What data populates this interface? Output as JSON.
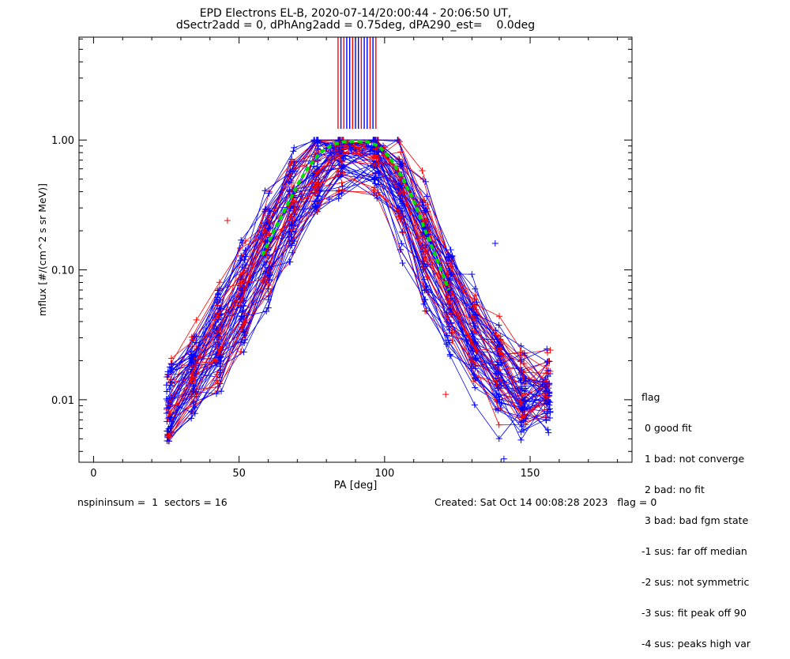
{
  "chart_data": {
    "type": "scatter",
    "title": "EPD Electrons EL-B, 2020-07-14/20:00:44 - 20:06:50 UT,",
    "subtitle": "dSectr2add = 0, dPhAng2add = 0.75deg, dPA290_est=    0.0deg",
    "xlabel": "PA [deg]",
    "ylabel": "mflux [#/(cm^2 s sr MeV)]",
    "xlim": [
      -5,
      185
    ],
    "ylim": [
      0.0033,
      6.2
    ],
    "yscale": "log",
    "xticks": [
      "0",
      "50",
      "100",
      "150"
    ],
    "xtick_values": [
      0,
      50,
      100,
      150
    ],
    "yticks": [
      "0.01",
      "0.10",
      "1.00"
    ],
    "ytick_values": [
      0.01,
      0.1,
      1.0
    ],
    "series_colors": {
      "red": "#ff0000",
      "blue": "#0000ff",
      "fit": "#00dd00"
    },
    "fit_curve": {
      "x": [
        58,
        62,
        66,
        70,
        74,
        78,
        82,
        86,
        90,
        94,
        98,
        102,
        106,
        110,
        114,
        118,
        122
      ],
      "y": [
        0.13,
        0.2,
        0.3,
        0.45,
        0.63,
        0.8,
        0.92,
        0.97,
        0.98,
        0.97,
        0.9,
        0.72,
        0.52,
        0.34,
        0.2,
        0.12,
        0.07
      ]
    },
    "spikes": {
      "x": [
        84,
        85,
        86,
        87,
        88,
        89,
        90,
        91,
        92,
        93,
        94,
        95,
        96,
        97
      ],
      "colors": [
        "#ff0000",
        "#0000ff",
        "#ff0000",
        "#0000ff",
        "#0000ff",
        "#ff0000",
        "#0000ff",
        "#0000ff",
        "#ff0000",
        "#0000ff",
        "#0000ff",
        "#ff0000",
        "#0000ff",
        "#ff0000"
      ]
    },
    "left_flank": {
      "x": [
        25,
        30,
        35,
        40,
        45,
        50,
        55,
        60,
        65,
        70,
        75,
        80,
        84
      ],
      "y": [
        0.008,
        0.011,
        0.016,
        0.022,
        0.033,
        0.05,
        0.085,
        0.14,
        0.22,
        0.35,
        0.52,
        0.7,
        0.8
      ]
    },
    "right_flank": {
      "x": [
        96,
        100,
        105,
        110,
        115,
        120,
        125,
        130,
        135,
        140,
        145,
        150,
        155
      ],
      "y": [
        0.8,
        0.65,
        0.42,
        0.25,
        0.13,
        0.075,
        0.045,
        0.03,
        0.02,
        0.014,
        0.011,
        0.01,
        0.012
      ]
    },
    "outliers": [
      {
        "x": 138,
        "y": 0.16,
        "color": "blue"
      },
      {
        "x": 46,
        "y": 0.24,
        "color": "red"
      },
      {
        "x": 81,
        "y": 0.35,
        "color": "blue"
      },
      {
        "x": 121,
        "y": 0.011,
        "color": "red"
      },
      {
        "x": 141,
        "y": 0.0035,
        "color": "blue"
      },
      {
        "x": 156,
        "y": 0.023,
        "color": "red"
      }
    ]
  },
  "legend": {
    "title": "flag",
    "items": [
      " 0 good fit",
      " 1 bad: not converge",
      " 2 bad: no fit",
      " 3 bad: bad fgm state",
      "-1 sus: far off median",
      "-2 sus: not symmetric",
      "-3 sus: fit peak off 90",
      "-4 sus: peaks high var"
    ]
  },
  "footer": {
    "left": "nspininsum =  1  sectors = 16",
    "right": "Created: Sat Oct 14 00:08:28 2023   flag = 0"
  }
}
